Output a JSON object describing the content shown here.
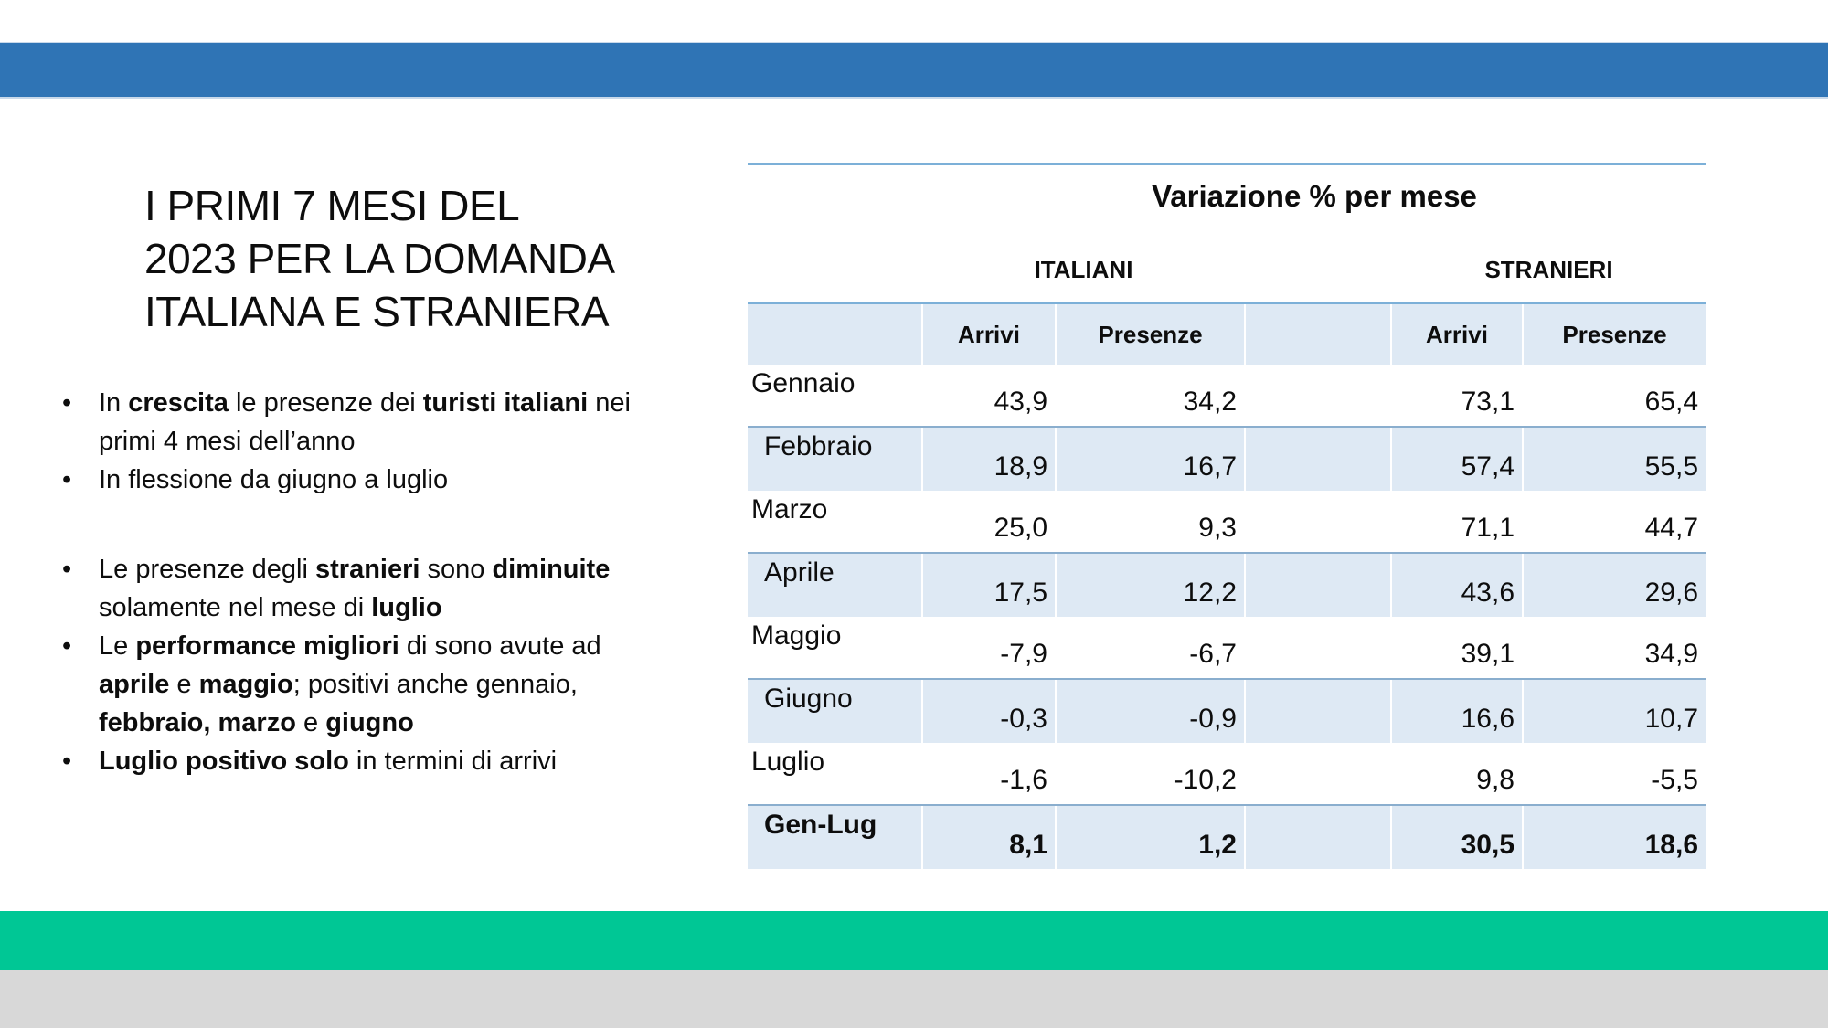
{
  "slide": {
    "title_lines": [
      "I PRIMI 7 MESI DEL",
      "2023 PER LA DOMANDA",
      "ITALIANA E STRANIERA"
    ]
  },
  "bullets": {
    "items": [
      {
        "segments": [
          {
            "t": "In ",
            "b": false
          },
          {
            "t": "crescita",
            "b": true
          },
          {
            "t": " le presenze dei ",
            "b": false
          },
          {
            "t": "turisti italiani",
            "b": true
          },
          {
            "t": " nei primi 4 mesi dell’anno",
            "b": false
          }
        ]
      },
      {
        "segments": [
          {
            "t": "In flessione da giugno a luglio",
            "b": false
          }
        ]
      },
      {
        "gap_before": true,
        "segments": [
          {
            "t": "Le presenze degli ",
            "b": false
          },
          {
            "t": "stranieri",
            "b": true
          },
          {
            "t": " sono ",
            "b": false
          },
          {
            "t": "diminuite",
            "b": true
          },
          {
            "t": " solamente nel mese di ",
            "b": false
          },
          {
            "t": "luglio",
            "b": true
          }
        ]
      },
      {
        "segments": [
          {
            "t": "Le ",
            "b": false
          },
          {
            "t": "performance migliori",
            "b": true
          },
          {
            "t": " di sono avute ad ",
            "b": false
          },
          {
            "t": "aprile",
            "b": true
          },
          {
            "t": " e ",
            "b": false
          },
          {
            "t": "maggio",
            "b": true
          },
          {
            "t": "; positivi anche gennaio, ",
            "b": false
          },
          {
            "t": "febbraio, marzo",
            "b": true
          },
          {
            "t": " e  ",
            "b": false
          },
          {
            "t": "giugno",
            "b": true
          }
        ]
      },
      {
        "segments": [
          {
            "t": "Luglio positivo solo",
            "b": true
          },
          {
            "t": " in termini di arrivi",
            "b": false
          }
        ]
      }
    ]
  },
  "table": {
    "title": "Variazione % per mese",
    "groups": [
      "ITALIANI",
      "STRANIERI"
    ],
    "col_headers": [
      "Arrivi",
      "Presenze",
      "Arrivi",
      "Presenze"
    ],
    "rows": [
      {
        "label": "Gennaio",
        "values": [
          "43,9",
          "34,2",
          "73,1",
          "65,4"
        ],
        "shaded": false,
        "bold": false
      },
      {
        "label": "Febbraio",
        "values": [
          "18,9",
          "16,7",
          "57,4",
          "55,5"
        ],
        "shaded": true,
        "bold": false
      },
      {
        "label": "Marzo",
        "values": [
          "25,0",
          "9,3",
          "71,1",
          "44,7"
        ],
        "shaded": false,
        "bold": false
      },
      {
        "label": "Aprile",
        "values": [
          "17,5",
          "12,2",
          "43,6",
          "29,6"
        ],
        "shaded": true,
        "bold": false
      },
      {
        "label": "Maggio",
        "values": [
          "-7,9",
          "-6,7",
          "39,1",
          "34,9"
        ],
        "shaded": false,
        "bold": false
      },
      {
        "label": "Giugno",
        "values": [
          "-0,3",
          "-0,9",
          "16,6",
          "10,7"
        ],
        "shaded": true,
        "bold": false
      },
      {
        "label": "Luglio",
        "values": [
          "-1,6",
          "-10,2",
          "9,8",
          "-5,5"
        ],
        "shaded": false,
        "bold": false
      },
      {
        "label": "Gen-Lug",
        "values": [
          "8,1",
          "1,2",
          "30,5",
          "18,6"
        ],
        "shaded": true,
        "bold": true
      }
    ]
  },
  "colors": {
    "banner_blue": "#2F74B5",
    "rule_blue": "#7CB0D8",
    "row_line_blue": "#8AAECE",
    "row_shade": "#DEE9F4",
    "footer_green": "#00C795",
    "footer_gray": "#D8D8D8",
    "text": "#0D0D0D"
  },
  "chart_data": {
    "type": "table",
    "title": "Variazione % per mese",
    "column_groups": [
      "ITALIANI",
      "STRANIERI"
    ],
    "columns": [
      "Arrivi ITALIANI",
      "Presenze ITALIANI",
      "Arrivi STRANIERI",
      "Presenze STRANIERI"
    ],
    "rows": [
      "Gennaio",
      "Febbraio",
      "Marzo",
      "Aprile",
      "Maggio",
      "Giugno",
      "Luglio",
      "Gen-Lug"
    ],
    "values": [
      [
        43.9,
        34.2,
        73.1,
        65.4
      ],
      [
        18.9,
        16.7,
        57.4,
        55.5
      ],
      [
        25.0,
        9.3,
        71.1,
        44.7
      ],
      [
        17.5,
        12.2,
        43.6,
        29.6
      ],
      [
        -7.9,
        -6.7,
        39.1,
        34.9
      ],
      [
        -0.3,
        -0.9,
        16.6,
        10.7
      ],
      [
        -1.6,
        -10.2,
        9.8,
        -5.5
      ],
      [
        8.1,
        1.2,
        30.5,
        18.6
      ]
    ]
  }
}
